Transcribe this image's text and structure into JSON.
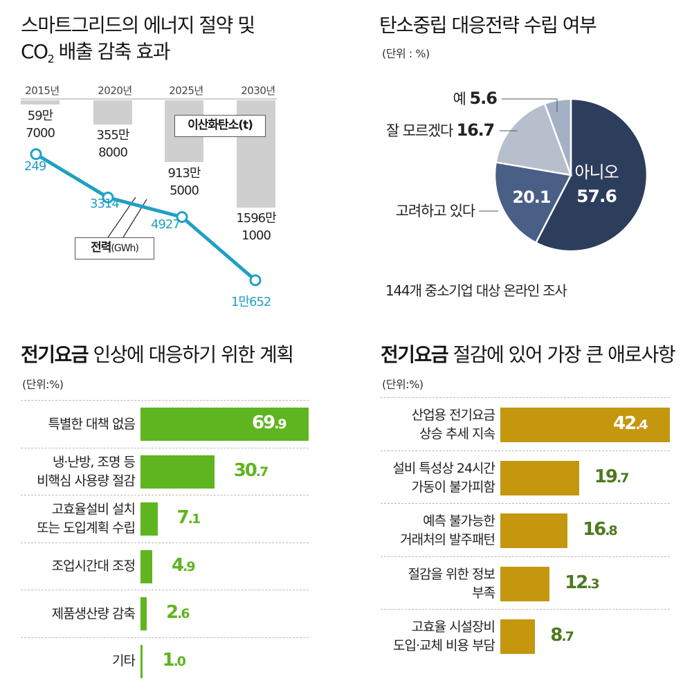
{
  "colors": {
    "co2_bar": "#cfcfcf",
    "power_line": "#1fa0c4",
    "pie_no": "#2d3d5c",
    "pie_considering": "#4a5f86",
    "pie_dontknow": "#b8bfcc",
    "pie_yes": "#a4b0c6",
    "green_bar": "#5fb51f",
    "gold_bar": "#c4970f",
    "gold_value": "#4c7a1e"
  },
  "panel1": {
    "title_line1": "스마트그리드의 에너지 절약 및",
    "title_co": "CO",
    "title_sub": "2",
    "title_rest": " 배출 감축 효과",
    "co2_legend": "이산화탄소(t)",
    "power_legend_main": "전력",
    "power_legend_unit": "(GWh)",
    "chart_data": {
      "type": "bar+line",
      "categories": [
        "2015년",
        "2020년",
        "2025년",
        "2030년"
      ],
      "series": [
        {
          "name": "이산화탄소(t)",
          "type": "bar",
          "values": [
            597000,
            3558000,
            9135000,
            15961000
          ],
          "labels": [
            [
              "59만",
              "7000"
            ],
            [
              "355만",
              "8000"
            ],
            [
              "913만",
              "5000"
            ],
            [
              "1596만",
              "1000"
            ]
          ]
        },
        {
          "name": "전력(GWh)",
          "type": "line",
          "values": [
            249,
            3314,
            4927,
            10652
          ],
          "labels": [
            "249",
            "3314",
            "4927",
            "1만652"
          ]
        }
      ],
      "co2_max": 15961000,
      "power_max": 10652
    }
  },
  "panel2": {
    "title": "탄소중립 대응전략 수립 여부",
    "unit": "(단위 : %)",
    "note": "144개 중소기업 대상 온라인 조사",
    "chart_data": {
      "type": "pie",
      "slices": [
        {
          "label": "아니오",
          "value": 57.6,
          "value_text": "57.6"
        },
        {
          "label": "고려하고 있다",
          "value": 20.1,
          "value_text": "20.1"
        },
        {
          "label": "잘 모르겠다",
          "value": 16.7,
          "value_text": "16.7"
        },
        {
          "label": "예",
          "value": 5.6,
          "value_text": "5.6"
        }
      ]
    }
  },
  "panel3": {
    "title_bold": "전기요금",
    "title_rest": " 인상에 대응하기 위한 계획",
    "unit": "(단위:%)",
    "chart_data": {
      "type": "bar",
      "orientation": "horizontal",
      "max": 69.9,
      "items": [
        {
          "label_lines": [
            "특별한 대책 없음"
          ],
          "value": 69.9,
          "int": "69",
          "dec": ".9"
        },
        {
          "label_lines": [
            "냉·난방, 조명 등",
            "비핵심 사용량 절감"
          ],
          "value": 30.7,
          "int": "30",
          "dec": ".7"
        },
        {
          "label_lines": [
            "고효율설비 설치",
            "또는 도입계획 수립"
          ],
          "value": 7.1,
          "int": "7",
          "dec": ".1"
        },
        {
          "label_lines": [
            "조업시간대 조정"
          ],
          "value": 4.9,
          "int": "4",
          "dec": ".9"
        },
        {
          "label_lines": [
            "제품생산량 감축"
          ],
          "value": 2.6,
          "int": "2",
          "dec": ".6"
        },
        {
          "label_lines": [
            "기타"
          ],
          "value": 1.0,
          "int": "1",
          "dec": ".0"
        }
      ]
    }
  },
  "panel4": {
    "title_bold": "전기요금",
    "title_rest": " 절감에 있어 가장 큰 애로사항",
    "unit": "(단위:%)",
    "chart_data": {
      "type": "bar",
      "orientation": "horizontal",
      "max": 42.4,
      "items": [
        {
          "label_lines": [
            "산업용 전기요금",
            "상승 추세 지속"
          ],
          "value": 42.4,
          "int": "42",
          "dec": ".4"
        },
        {
          "label_lines": [
            "설비 특성상 24시간",
            "가동이 불가피함"
          ],
          "value": 19.7,
          "int": "19",
          "dec": ".7"
        },
        {
          "label_lines": [
            "예측 불가능한",
            "거래처의 발주패턴"
          ],
          "value": 16.8,
          "int": "16",
          "dec": ".8"
        },
        {
          "label_lines": [
            "절감을 위한 정보",
            "부족"
          ],
          "value": 12.3,
          "int": "12",
          "dec": ".3"
        },
        {
          "label_lines": [
            "고효율 시설장비",
            "도입·교체 비용 부담"
          ],
          "value": 8.7,
          "int": "8",
          "dec": ".7"
        }
      ]
    }
  }
}
